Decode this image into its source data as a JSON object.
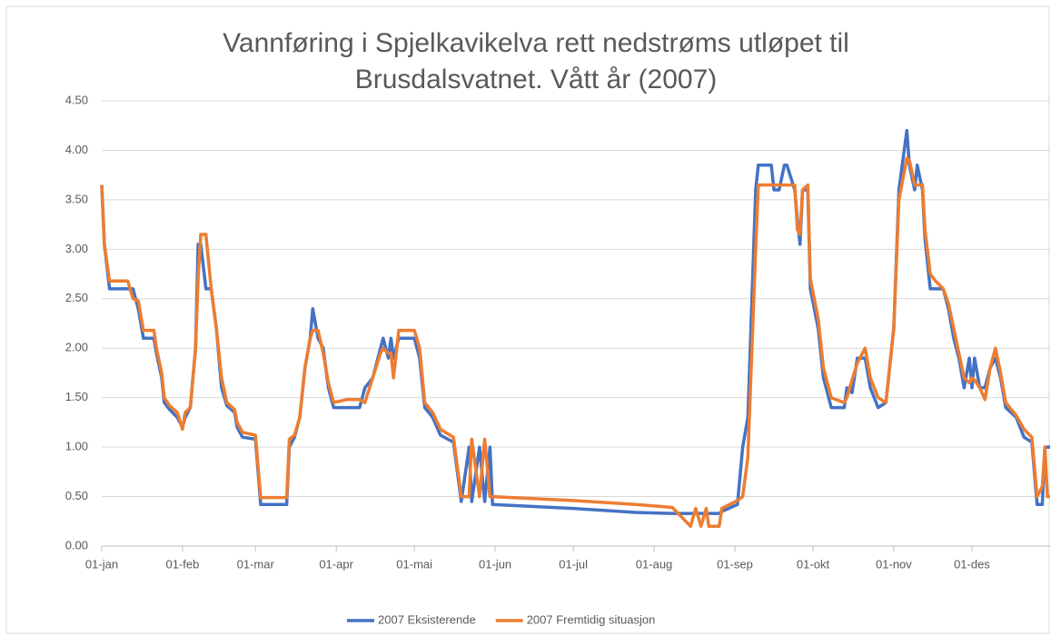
{
  "chart_data": {
    "type": "line",
    "title": "Vannføring i Spjelkavikelva rett nedstrøms utløpet til Brusdalsvatnet. Vått år (2007)",
    "x": [
      0,
      1,
      3,
      10,
      12,
      14,
      16,
      20,
      21,
      23,
      24,
      26,
      29,
      31,
      32,
      34,
      36,
      37,
      38,
      40,
      42,
      44,
      46,
      48,
      51,
      52,
      54,
      59,
      61,
      71,
      72,
      74,
      76,
      78,
      80,
      81,
      83,
      85,
      87,
      89,
      94,
      99,
      101,
      104,
      107,
      108,
      110,
      111,
      112,
      114,
      120,
      122,
      124,
      127,
      130,
      135,
      138,
      141,
      142,
      145,
      147,
      149,
      150,
      181,
      205,
      219,
      226,
      228,
      230,
      232,
      233,
      237,
      238,
      244,
      246,
      248,
      251,
      252,
      257,
      258,
      260,
      262,
      263,
      266,
      267,
      268,
      269,
      271,
      272,
      275,
      277,
      280,
      285,
      286,
      288,
      290,
      293,
      295,
      298,
      301,
      304,
      306,
      309,
      310,
      312,
      313,
      315,
      316,
      318,
      320,
      323,
      325,
      327,
      329,
      331,
      333,
      334,
      335,
      337,
      339,
      341,
      343,
      345,
      347,
      351,
      354,
      357,
      359,
      361,
      362,
      363,
      364
    ],
    "series": [
      {
        "name": "2007 Eksisterende",
        "color": "#4472c4",
        "values": [
          3.65,
          3.05,
          2.6,
          2.6,
          2.6,
          2.4,
          2.1,
          2.1,
          1.95,
          1.7,
          1.45,
          1.38,
          1.3,
          1.2,
          1.3,
          1.4,
          2.0,
          3.05,
          3.05,
          2.6,
          2.6,
          2.2,
          1.6,
          1.42,
          1.35,
          1.2,
          1.1,
          1.08,
          0.42,
          0.42,
          1.0,
          1.1,
          1.3,
          1.8,
          2.1,
          2.4,
          2.1,
          2.0,
          1.6,
          1.4,
          1.4,
          1.4,
          1.6,
          1.7,
          2.0,
          2.1,
          1.9,
          2.1,
          1.9,
          2.1,
          2.1,
          1.9,
          1.4,
          1.3,
          1.12,
          1.05,
          0.45,
          1.0,
          0.45,
          1.0,
          0.45,
          1.0,
          0.42,
          0.38,
          0.34,
          0.33,
          0.33,
          0.33,
          0.33,
          0.33,
          0.33,
          0.33,
          0.35,
          0.42,
          1.0,
          1.3,
          3.6,
          3.85,
          3.85,
          3.6,
          3.6,
          3.85,
          3.85,
          3.6,
          3.3,
          3.05,
          3.6,
          3.6,
          2.6,
          2.2,
          1.7,
          1.4,
          1.4,
          1.6,
          1.55,
          1.9,
          1.9,
          1.6,
          1.4,
          1.45,
          2.2,
          3.6,
          4.2,
          3.85,
          3.6,
          3.85,
          3.6,
          3.1,
          2.6,
          2.6,
          2.6,
          2.4,
          2.1,
          1.9,
          1.6,
          1.9,
          1.6,
          1.9,
          1.6,
          1.6,
          1.8,
          1.9,
          1.7,
          1.4,
          1.3,
          1.1,
          1.05,
          0.42,
          0.42,
          1.0,
          1.0,
          1.0
        ]
      },
      {
        "name": "2007 Fremtidig situasjon",
        "color": "#ed7d31",
        "values": [
          3.65,
          3.05,
          2.68,
          2.68,
          2.5,
          2.48,
          2.18,
          2.18,
          2.0,
          1.75,
          1.5,
          1.42,
          1.35,
          1.18,
          1.35,
          1.4,
          2.0,
          2.7,
          3.15,
          3.15,
          2.6,
          2.2,
          1.7,
          1.45,
          1.38,
          1.25,
          1.15,
          1.12,
          0.49,
          0.49,
          1.08,
          1.12,
          1.3,
          1.8,
          2.1,
          2.18,
          2.18,
          1.95,
          1.65,
          1.45,
          1.48,
          1.48,
          1.45,
          1.7,
          1.95,
          2.0,
          1.95,
          1.95,
          1.7,
          2.18,
          2.18,
          2.0,
          1.45,
          1.35,
          1.18,
          1.1,
          0.5,
          0.5,
          1.08,
          0.5,
          1.08,
          0.5,
          0.5,
          0.46,
          0.42,
          0.39,
          0.2,
          0.38,
          0.2,
          0.38,
          0.2,
          0.2,
          0.38,
          0.46,
          0.5,
          0.9,
          3.0,
          3.65,
          3.65,
          3.65,
          3.65,
          3.65,
          3.65,
          3.65,
          3.2,
          3.15,
          3.6,
          3.65,
          2.7,
          2.3,
          1.8,
          1.5,
          1.45,
          1.5,
          1.68,
          1.85,
          2.0,
          1.7,
          1.5,
          1.45,
          2.2,
          3.5,
          3.92,
          3.9,
          3.65,
          3.65,
          3.65,
          3.2,
          2.75,
          2.68,
          2.6,
          2.45,
          2.2,
          1.95,
          1.7,
          1.65,
          1.7,
          1.68,
          1.6,
          1.48,
          1.8,
          2.0,
          1.75,
          1.45,
          1.32,
          1.18,
          1.1,
          0.5,
          0.6,
          1.0,
          0.5,
          0.5
        ]
      }
    ],
    "xlim": [
      0,
      364
    ],
    "xticks": [
      {
        "value": 0,
        "label": "01-jan"
      },
      {
        "value": 31,
        "label": "01-feb"
      },
      {
        "value": 59,
        "label": "01-mar"
      },
      {
        "value": 90,
        "label": "01-apr"
      },
      {
        "value": 120,
        "label": "01-mai"
      },
      {
        "value": 151,
        "label": "01-jun"
      },
      {
        "value": 181,
        "label": "01-jul"
      },
      {
        "value": 212,
        "label": "01-aug"
      },
      {
        "value": 243,
        "label": "01-sep"
      },
      {
        "value": 273,
        "label": "01-okt"
      },
      {
        "value": 304,
        "label": "01-nov"
      },
      {
        "value": 334,
        "label": "01-des"
      }
    ],
    "ylim": [
      0,
      4.5
    ],
    "yticks": [
      {
        "value": 0,
        "label": "0.00"
      },
      {
        "value": 0.5,
        "label": "0.50"
      },
      {
        "value": 1,
        "label": "1.00"
      },
      {
        "value": 1.5,
        "label": "1.50"
      },
      {
        "value": 2,
        "label": "2.00"
      },
      {
        "value": 2.5,
        "label": "2.50"
      },
      {
        "value": 3,
        "label": "3.00"
      },
      {
        "value": 3.5,
        "label": "3.50"
      },
      {
        "value": 4,
        "label": "4.00"
      },
      {
        "value": 4.5,
        "label": "4.50"
      }
    ],
    "grid": true,
    "legend": "bottom"
  }
}
